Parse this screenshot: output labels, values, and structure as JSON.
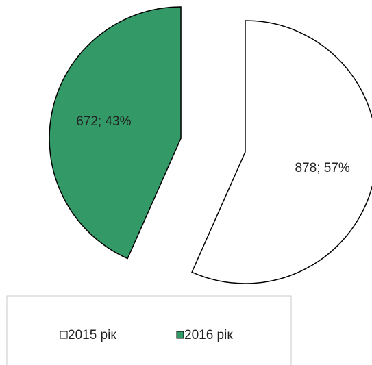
{
  "chart_data": {
    "type": "pie",
    "categories": [
      "2015 рік",
      "2016 рік"
    ],
    "values": [
      878,
      672
    ],
    "value_labels": [
      "878; 57%",
      "672; 43%"
    ],
    "colors": [
      "#ffffff",
      "#339966"
    ],
    "exploded": true,
    "legend": "bottom"
  }
}
